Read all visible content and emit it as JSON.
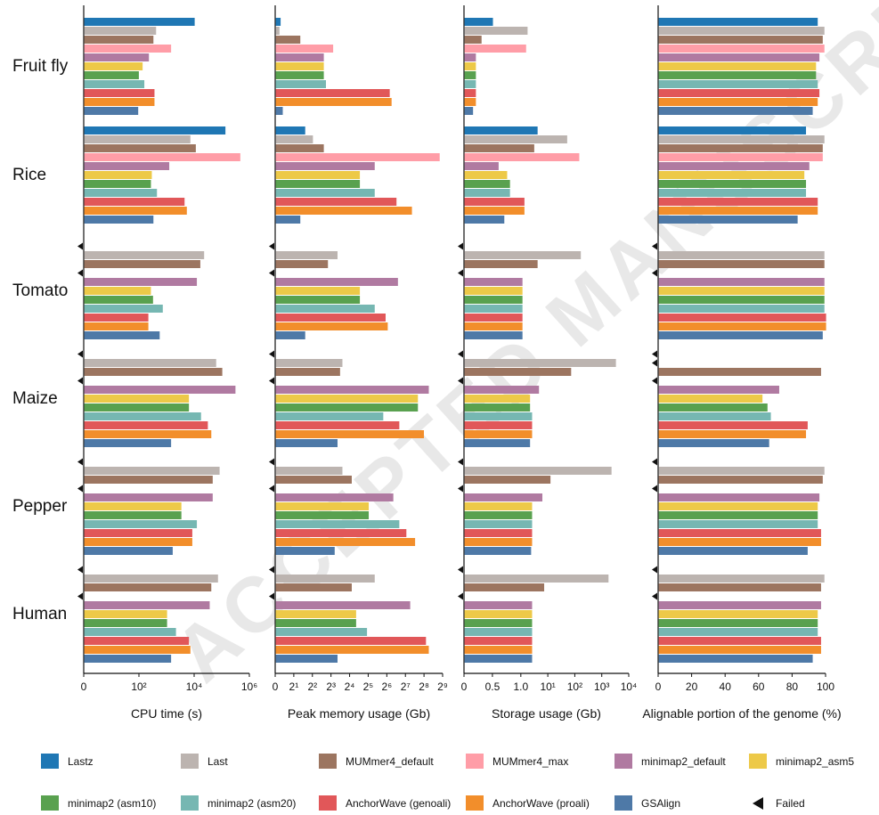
{
  "species": [
    "Fruit fly",
    "Rice",
    "Tomato",
    "Maize",
    "Pepper",
    "Human"
  ],
  "tools": [
    {
      "name": "Lastz",
      "color": "#1f77b4"
    },
    {
      "name": "Last",
      "color": "#bcb4b0"
    },
    {
      "name": "MUMmer4_default",
      "color": "#9c7560"
    },
    {
      "name": "MUMmer4_max",
      "color": "#ff9da7"
    },
    {
      "name": "minimap2_default",
      "color": "#b07aa1"
    },
    {
      "name": "minimap2_asm5",
      "color": "#edc948"
    },
    {
      "name": "minimap2 (asm10)",
      "color": "#59a14f"
    },
    {
      "name": "minimap2 (asm20)",
      "color": "#76b7b2"
    },
    {
      "name": "AnchorWave (genoali)",
      "color": "#e15759"
    },
    {
      "name": "AnchorWave (proali)",
      "color": "#f28e2b"
    },
    {
      "name": "GSAlign",
      "color": "#4e79a7"
    }
  ],
  "failed_label": "Failed",
  "watermark": "ACCEPTED MANUSCRIPT",
  "chart_data": [
    {
      "type": "bar",
      "orientation": "horizontal",
      "xlabel": "CPU time (s)",
      "xscale": "log10",
      "xlim": [
        1,
        1000000
      ],
      "ticks": [
        {
          "v": 1,
          "label": "0"
        },
        {
          "v": 100,
          "label": "10²"
        },
        {
          "v": 10000,
          "label": "10⁴"
        },
        {
          "v": 1000000,
          "label": "10⁶"
        }
      ],
      "values": {
        "Fruit fly": [
          10000,
          400,
          320,
          1400,
          220,
          130,
          95,
          150,
          350,
          350,
          90
        ],
        "Rice": [
          130000,
          7000,
          11000,
          450000,
          1200,
          280,
          260,
          430,
          4300,
          5200,
          320
        ],
        "Tomato": [
          null,
          22000,
          16000,
          null,
          12000,
          260,
          310,
          700,
          210,
          210,
          540
        ],
        "Maize": [
          null,
          60000,
          100000,
          null,
          300000,
          6200,
          6200,
          17000,
          30000,
          40000,
          1400
        ],
        "Pepper": [
          null,
          80000,
          45000,
          null,
          45000,
          3300,
          3300,
          12000,
          8200,
          8200,
          1600
        ],
        "Human": [
          null,
          70000,
          40000,
          null,
          35000,
          1000,
          1000,
          2100,
          6200,
          7000,
          1400
        ]
      }
    },
    {
      "type": "bar",
      "orientation": "horizontal",
      "xlabel": "Peak memory usage (Gb)",
      "xscale": "log2",
      "xlim": [
        1,
        512
      ],
      "ticks": [
        {
          "v": 1,
          "label": "0"
        },
        {
          "v": 2,
          "label": "2¹"
        },
        {
          "v": 4,
          "label": "2²"
        },
        {
          "v": 8,
          "label": "2³"
        },
        {
          "v": 16,
          "label": "2⁴"
        },
        {
          "v": 32,
          "label": "2⁵"
        },
        {
          "v": 64,
          "label": "2⁶"
        },
        {
          "v": 128,
          "label": "2⁷"
        },
        {
          "v": 256,
          "label": "2⁸"
        },
        {
          "v": 512,
          "label": "2⁹"
        }
      ],
      "values": {
        "Fruit fly": [
          1.2,
          1.15,
          2.5,
          8.5,
          6,
          6,
          6,
          6.5,
          70,
          75,
          1.3
        ],
        "Rice": [
          3,
          4,
          6,
          450,
          40,
          23,
          23,
          40,
          90,
          160,
          2.5
        ],
        "Tomato": [
          null,
          10,
          7,
          null,
          95,
          23,
          23,
          40,
          60,
          65,
          3
        ],
        "Maize": [
          null,
          12,
          11,
          null,
          300,
          200,
          200,
          55,
          100,
          250,
          10
        ],
        "Pepper": [
          null,
          12,
          17,
          null,
          80,
          32,
          32,
          100,
          130,
          180,
          9
        ],
        "Human": [
          null,
          40,
          17,
          null,
          150,
          20,
          20,
          30,
          270,
          300,
          10
        ]
      }
    },
    {
      "type": "bar",
      "orientation": "horizontal",
      "xlabel": "Storage usage (Gb)",
      "xscale": "segmented: linear 0–1.0, log10 1.0–10⁴",
      "xlim": [
        0,
        10000
      ],
      "ticks": [
        {
          "v": 0,
          "label": "0"
        },
        {
          "v": 0.5,
          "label": "0.5"
        },
        {
          "v": 1.0,
          "label": "1.0"
        },
        {
          "v": 10,
          "label": "10¹"
        },
        {
          "v": 100,
          "label": "10²"
        },
        {
          "v": 1000,
          "label": "10³"
        },
        {
          "v": 10000,
          "label": "10⁴"
        }
      ],
      "values": {
        "Fruit fly": [
          0.5,
          1.7,
          0.3,
          1.5,
          0.2,
          0.2,
          0.2,
          0.2,
          0.2,
          0.2,
          0.15
        ],
        "Rice": [
          4,
          50,
          3,
          140,
          0.6,
          0.75,
          0.8,
          0.8,
          1.3,
          1.3,
          0.7
        ],
        "Tomato": [
          null,
          160,
          4,
          null,
          1.1,
          1.1,
          1.1,
          1.1,
          1.1,
          1.1,
          1.1
        ],
        "Maize": [
          null,
          3200,
          70,
          null,
          4.5,
          2.1,
          2.1,
          2.5,
          2.5,
          2.5,
          2.1
        ],
        "Pepper": [
          null,
          2200,
          12,
          null,
          6,
          2.5,
          2.5,
          2.5,
          2.5,
          2.5,
          2.3
        ],
        "Human": [
          null,
          1700,
          7,
          null,
          2.5,
          2.5,
          2.5,
          2.5,
          2.5,
          2.5,
          2.5
        ]
      }
    },
    {
      "type": "bar",
      "orientation": "horizontal",
      "xlabel": "Alignable portion of the genome (%)",
      "xscale": "linear",
      "xlim": [
        0,
        100
      ],
      "ticks": [
        {
          "v": 0,
          "label": "0"
        },
        {
          "v": 20,
          "label": "20"
        },
        {
          "v": 40,
          "label": "40"
        },
        {
          "v": 60,
          "label": "60"
        },
        {
          "v": 80,
          "label": "80"
        },
        {
          "v": 100,
          "label": "100"
        }
      ],
      "values": {
        "Fruit fly": [
          95,
          99,
          98,
          99,
          96,
          94,
          94,
          95,
          96,
          95,
          92
        ],
        "Rice": [
          88,
          99,
          98,
          98,
          90,
          87,
          88,
          88,
          95,
          95,
          83
        ],
        "Tomato": [
          null,
          99,
          99,
          null,
          99,
          99,
          99,
          99,
          100,
          100,
          98
        ],
        "Maize": [
          null,
          null,
          97,
          null,
          72,
          62,
          65,
          67,
          89,
          88,
          66
        ],
        "Pepper": [
          null,
          99,
          98,
          null,
          96,
          95,
          95,
          95,
          97,
          97,
          89
        ],
        "Human": [
          null,
          99,
          97,
          null,
          97,
          95,
          95,
          95,
          97,
          97,
          92
        ]
      }
    }
  ]
}
